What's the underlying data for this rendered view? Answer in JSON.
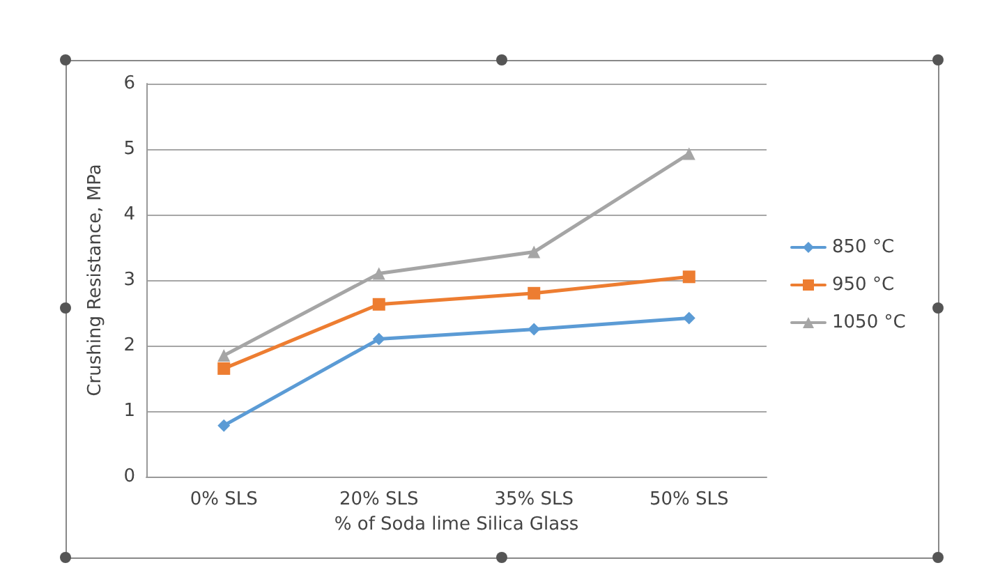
{
  "chart_data": {
    "type": "line",
    "xlabel": "% of Soda lime Silica Glass",
    "ylabel": "Crushing Resistance, MPa",
    "categories": [
      "0% SLS",
      "20% SLS",
      "35% SLS",
      "50% SLS"
    ],
    "series": [
      {
        "name": "850 °C",
        "color": "#5b9bd5",
        "marker": "diamond",
        "values": [
          0.78,
          2.1,
          2.25,
          2.42
        ]
      },
      {
        "name": "950 °C",
        "color": "#ed7d31",
        "marker": "square",
        "values": [
          1.65,
          2.63,
          2.8,
          3.05
        ]
      },
      {
        "name": "1050 °C",
        "color": "#a5a5a5",
        "marker": "triangle",
        "values": [
          1.85,
          3.1,
          3.43,
          4.93
        ]
      }
    ],
    "ylim": [
      0,
      6
    ],
    "yticks": [
      0,
      1,
      2,
      3,
      4,
      5,
      6
    ],
    "grid": "y",
    "legend": "right",
    "line_style": "solid"
  }
}
